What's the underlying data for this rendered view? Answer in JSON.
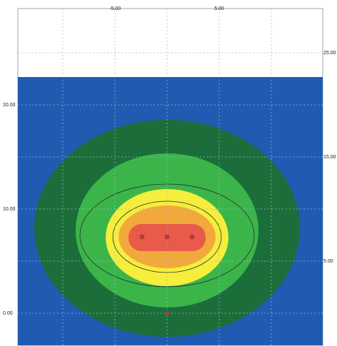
{
  "chart_data": {
    "type": "heatmap",
    "title": "",
    "xlabel": "",
    "ylabel": "",
    "x_ticks_top": [
      "-5.00",
      "5.00"
    ],
    "y_ticks_left": [
      "20.00",
      "10.00",
      "0.00"
    ],
    "y_ticks_right": [
      "25.00",
      "15.00",
      "5.00"
    ],
    "grid": true,
    "zones": [
      {
        "name": "",
        "color": "#1f5bb0",
        "level": 0
      },
      {
        "name": "",
        "color": "#1b6e3a",
        "level": 1
      },
      {
        "name": "",
        "color": "#3bb54a",
        "level": 2
      },
      {
        "name": "",
        "color": "#f5ee3c",
        "level": 3
      },
      {
        "name": "",
        "color": "#f2a93b",
        "level": 4
      },
      {
        "name": "",
        "color": "#e85a4a",
        "level": 5
      }
    ],
    "sources": [
      {
        "x": -2.5,
        "y": 8.0
      },
      {
        "x": 0.0,
        "y": 8.0
      },
      {
        "x": 2.5,
        "y": 8.0
      }
    ],
    "receiver_marker": {
      "x": 0.0,
      "y": 0.0
    },
    "colors": {
      "background_top": "#ffffff",
      "grid": "#9db8d8",
      "contour_line": "#2d2d2d",
      "source_dot": "#b83a3a",
      "receiver_dot": "#d42a2a"
    }
  }
}
